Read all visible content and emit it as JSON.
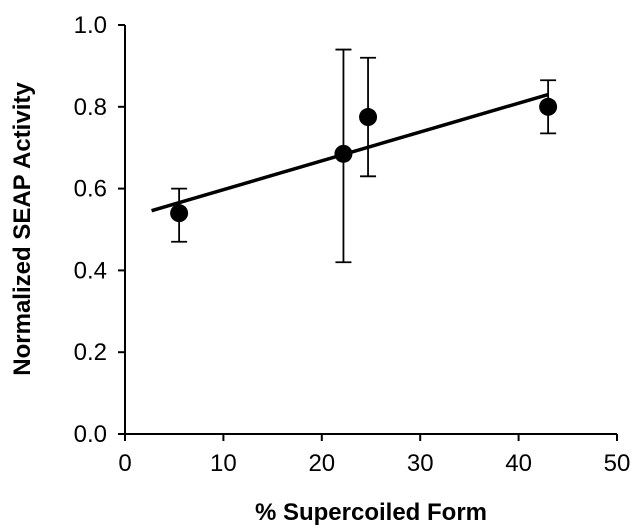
{
  "chart_data": {
    "type": "scatter",
    "title": "",
    "xlabel": "% Supercoiled Form",
    "ylabel": "Normalized SEAP Activity",
    "xlim": [
      0,
      50
    ],
    "ylim": [
      0.0,
      1.0
    ],
    "x_ticks": [
      0,
      10,
      20,
      30,
      40,
      50
    ],
    "y_ticks": [
      0.0,
      0.2,
      0.4,
      0.6,
      0.8,
      1.0
    ],
    "x_tick_labels": [
      "0",
      "10",
      "20",
      "30",
      "40",
      "50"
    ],
    "y_tick_labels": [
      "0.0",
      "0.2",
      "0.4",
      "0.6",
      "0.8",
      "1.0"
    ],
    "grid": false,
    "series": [
      {
        "points": [
          {
            "x": 5.5,
            "y": 0.54,
            "err_low": 0.47,
            "err_high": 0.6
          },
          {
            "x": 22.2,
            "y": 0.685,
            "err_low": 0.42,
            "err_high": 0.94
          },
          {
            "x": 24.7,
            "y": 0.775,
            "err_low": 0.63,
            "err_high": 0.92
          },
          {
            "x": 43.0,
            "y": 0.8,
            "err_low": 0.735,
            "err_high": 0.865
          }
        ]
      }
    ],
    "trendline": {
      "x": [
        2.7,
        43.0
      ],
      "y": [
        0.546,
        0.83
      ]
    },
    "colors": {
      "marker": "#000000",
      "line": "#000000",
      "axis": "#000000"
    }
  }
}
